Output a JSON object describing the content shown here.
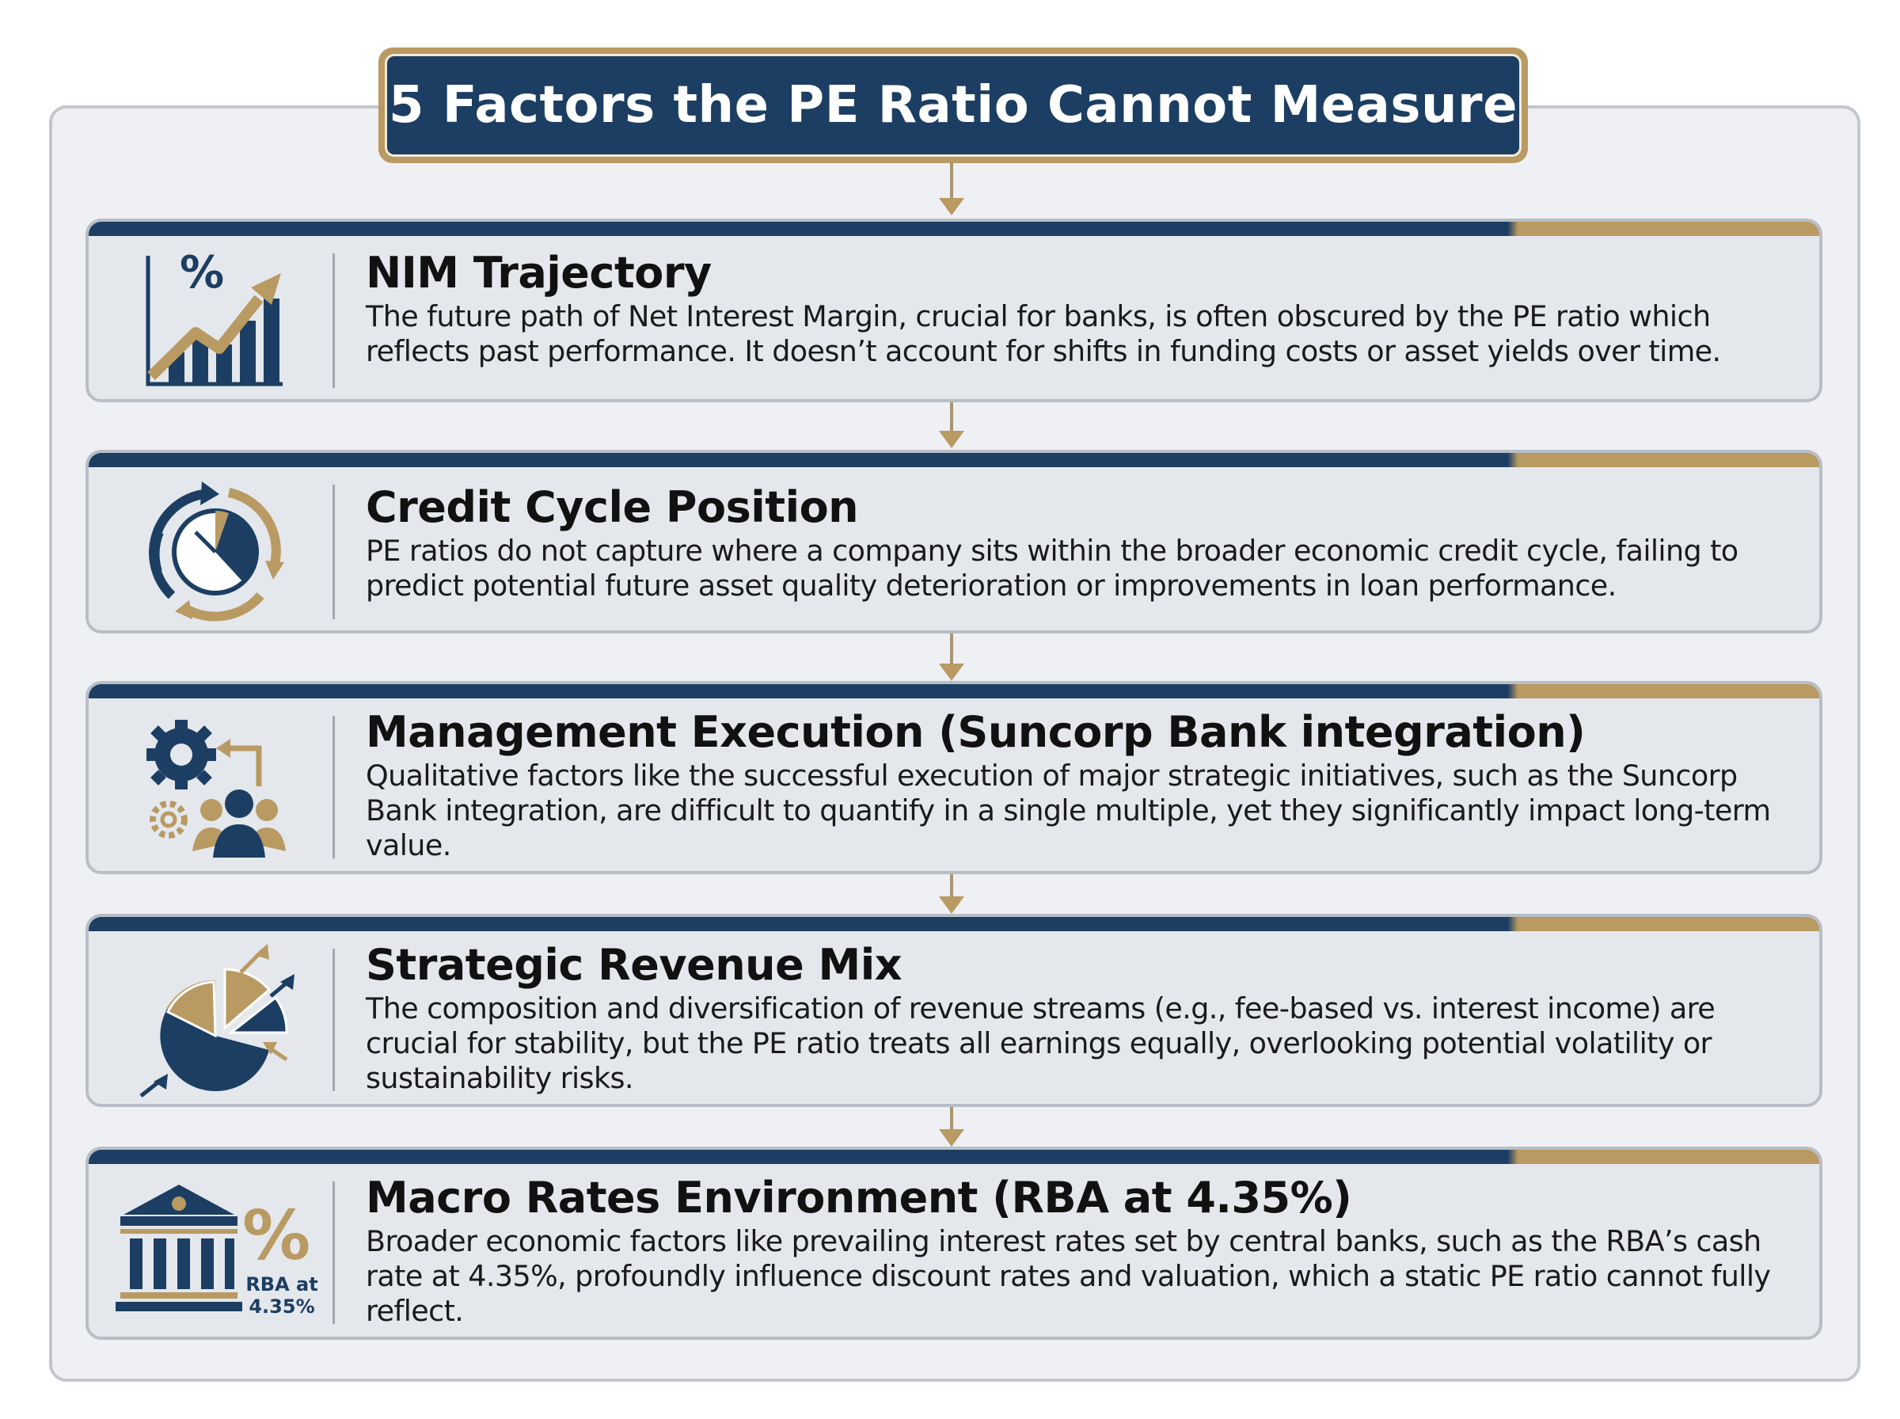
{
  "title": "5 Factors the PE Ratio Cannot Measure",
  "colors": {
    "navy": "#1c3e63",
    "gold": "#b99a63",
    "panel": "#e4e7ec"
  },
  "factors": [
    {
      "heading": "NIM Trajectory",
      "body": "The future path of Net Interest Margin, crucial for banks, is often obscured by the PE ratio which reflects past performance. It doesn’t account for shifts in funding costs or asset yields over time.",
      "icon": "rising-bar-chart-percent-icon",
      "icon_text": "%"
    },
    {
      "heading": "Credit Cycle Position",
      "body": "PE ratios do not capture where a company sits within the broader economic credit cycle, failing to predict potential future asset quality deterioration or improvements in loan performance.",
      "icon": "cyclical-clock-icon"
    },
    {
      "heading": "Management Execution (Suncorp Bank integration)",
      "body": "Qualitative factors like the successful execution of major strategic initiatives, such as the Suncorp Bank integration, are difficult to quantify in a single multiple, yet they significantly impact long-term value.",
      "icon": "gears-team-icon"
    },
    {
      "heading": "Strategic Revenue Mix",
      "body": "The composition and diversification of revenue streams (e.g., fee-based vs. interest income) are crucial for stability, but the PE ratio treats all earnings equally, overlooking potential volatility or sustainability risks.",
      "icon": "pie-chart-arrows-icon"
    },
    {
      "heading": "Macro Rates Environment (RBA at 4.35%)",
      "body": "Broader economic factors like prevailing interest rates set by central banks, such as the RBA’s cash rate at 4.35%, profoundly influence discount rates and valuation, which a static PE ratio cannot fully reflect.",
      "icon": "central-bank-percent-icon",
      "icon_text": "%",
      "icon_caption_line1": "RBA at",
      "icon_caption_line2": "4.35%"
    }
  ]
}
